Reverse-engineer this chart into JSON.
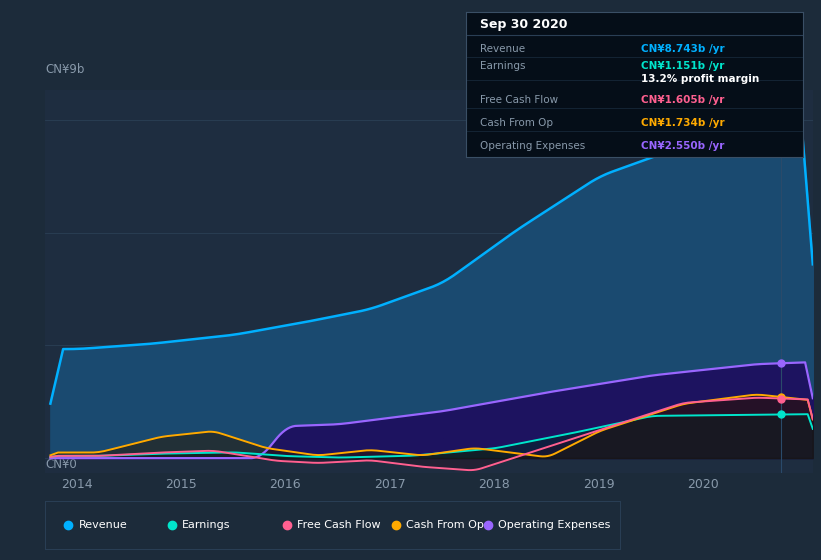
{
  "bg_color": "#1c2b3a",
  "plot_bg_color": "#1e2d40",
  "grid_color": "#2a3f55",
  "text_color": "#8899aa",
  "ylabel_top": "CN¥9b",
  "ylabel_bottom": "CN¥0",
  "x_ticks": [
    2014,
    2015,
    2016,
    2017,
    2018,
    2019,
    2020
  ],
  "ylim": [
    -0.4,
    9.8
  ],
  "xlim": [
    2013.7,
    2021.05
  ],
  "revenue_color": "#00b0ff",
  "revenue_fill": "#1a4a70",
  "earnings_color": "#00e5cc",
  "op_exp_color": "#9966ff",
  "op_exp_fill": "#2a1060",
  "free_cash_color": "#ff6090",
  "cash_from_op_color": "#ffaa00",
  "tooltip_bg": "#050e18",
  "tooltip_border": "#3a4f65",
  "tooltip_date": "Sep 30 2020",
  "tooltip_revenue_label": "Revenue",
  "tooltip_revenue_value": "CN¥8.743b /yr",
  "tooltip_revenue_color": "#00b0ff",
  "tooltip_earnings_label": "Earnings",
  "tooltip_earnings_value": "CN¥1.151b /yr",
  "tooltip_earnings_color": "#00e5cc",
  "tooltip_margin": "13.2% profit margin",
  "tooltip_fcf_label": "Free Cash Flow",
  "tooltip_fcf_value": "CN¥1.605b /yr",
  "tooltip_fcf_color": "#ff6090",
  "tooltip_cop_label": "Cash From Op",
  "tooltip_cop_value": "CN¥1.734b /yr",
  "tooltip_cop_color": "#ffaa00",
  "tooltip_opex_label": "Operating Expenses",
  "tooltip_opex_value": "CN¥2.550b /yr",
  "tooltip_opex_color": "#9966ff",
  "legend_items": [
    {
      "label": "Revenue",
      "color": "#00b0ff"
    },
    {
      "label": "Earnings",
      "color": "#00e5cc"
    },
    {
      "label": "Free Cash Flow",
      "color": "#ff6090"
    },
    {
      "label": "Cash From Op",
      "color": "#ffaa00"
    },
    {
      "label": "Operating Expenses",
      "color": "#9966ff"
    }
  ]
}
